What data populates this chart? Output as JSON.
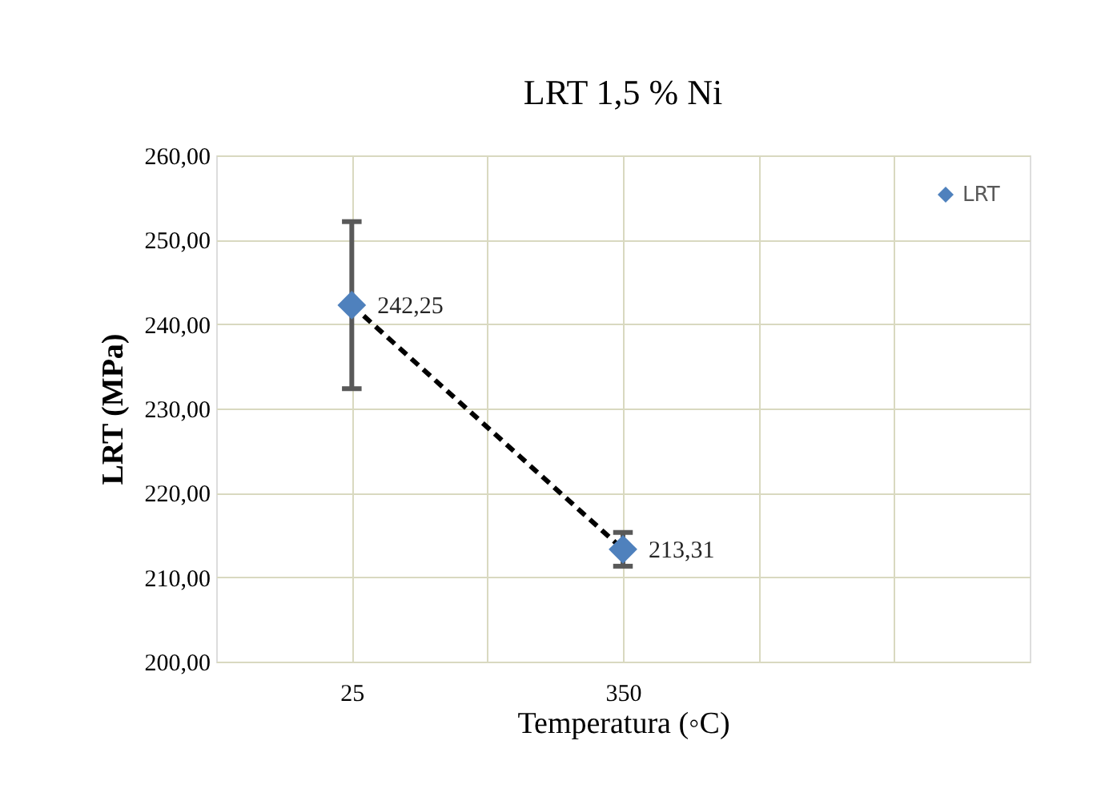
{
  "chart_data": {
    "type": "line",
    "title": "LRT 1,5 % Ni",
    "xlabel": "Temperatura (◦C)",
    "ylabel": "LRT (MPa)",
    "categories": [
      "25",
      null,
      "350",
      null,
      null
    ],
    "series": [
      {
        "name": "LRT",
        "color": "#4f81bd",
        "values": [
          242.25,
          null,
          213.31,
          null,
          null
        ],
        "errors": [
          9.9,
          null,
          2,
          null,
          null
        ],
        "value_labels": [
          "242,25",
          null,
          "213,31",
          null,
          null
        ]
      }
    ],
    "ylim": [
      200,
      260
    ],
    "yticks": [
      {
        "value": 200,
        "label": "200,00"
      },
      {
        "value": 210,
        "label": "210,00"
      },
      {
        "value": 220,
        "label": "220,00"
      },
      {
        "value": 230,
        "label": "230,00"
      },
      {
        "value": 240,
        "label": "240,00"
      },
      {
        "value": 250,
        "label": "250,00"
      },
      {
        "value": 260,
        "label": "260,00"
      }
    ],
    "grid": true,
    "legend": "top right",
    "marker": "diamond",
    "line_style": "dashed"
  }
}
